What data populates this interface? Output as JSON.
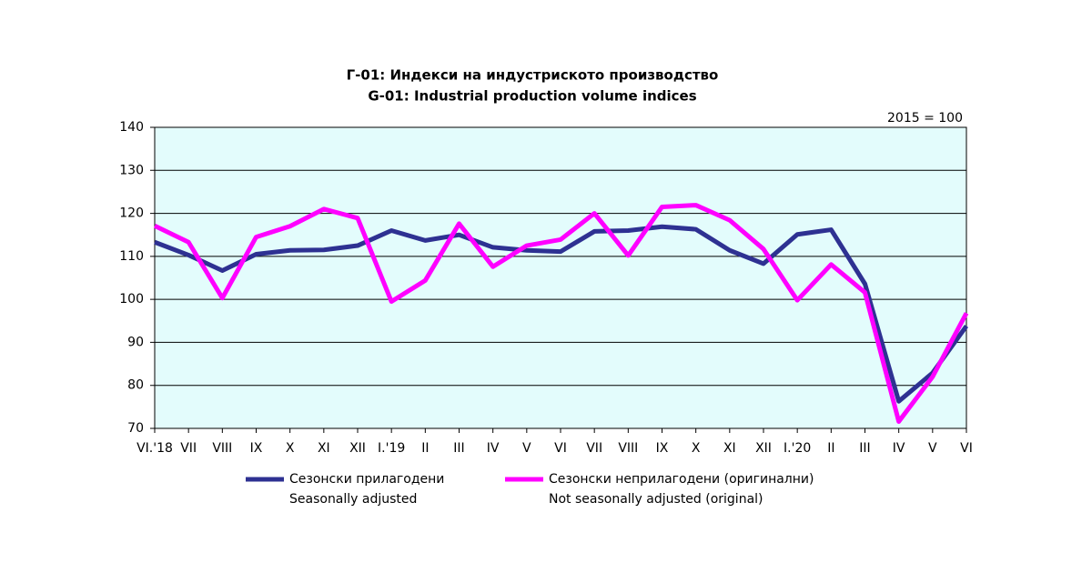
{
  "chart_data": {
    "type": "line",
    "title": "Г-01: Индекси на индустриското производство",
    "subtitle": "G-01: Industrial production volume indices",
    "annotation": "2015 = 100",
    "categories": [
      "VI.'18",
      "VII",
      "VIII",
      "IX",
      "X",
      "XI",
      "XII",
      "I.'19",
      "II",
      "III",
      "IV",
      "V",
      "VI",
      "VII",
      "VIII",
      "IX",
      "X",
      "XI",
      "XII",
      "I.'20",
      "II",
      "III",
      "IV",
      "V",
      "VI"
    ],
    "series": [
      {
        "name": "Сезонски прилагодени",
        "name_en": "Seasonally adjusted",
        "color": "#2e3192",
        "values": [
          113.3,
          110.3,
          106.7,
          110.5,
          111.4,
          111.5,
          112.5,
          116,
          113.7,
          115,
          112.1,
          111.4,
          111.1,
          115.8,
          116,
          116.9,
          116.3,
          111.4,
          108.3,
          115.1,
          116.2,
          103.6,
          76.3,
          82.9,
          93.8
        ]
      },
      {
        "name": "Сезонски неприлагодени (оригинални)",
        "name_en": "Not seasonally adjusted (original)",
        "color": "#ff00ff",
        "values": [
          117.1,
          113.3,
          100.3,
          114.5,
          117,
          121,
          118.9,
          99.5,
          104.4,
          117.6,
          107.6,
          112.5,
          113.9,
          120,
          110.2,
          121.5,
          121.9,
          118.4,
          111.7,
          99.8,
          108.1,
          101.6,
          71.6,
          82,
          96.8
        ]
      }
    ],
    "ylim": [
      70,
      140
    ],
    "yticks": [
      70,
      80,
      90,
      100,
      110,
      120,
      130,
      140
    ],
    "grid": true
  }
}
